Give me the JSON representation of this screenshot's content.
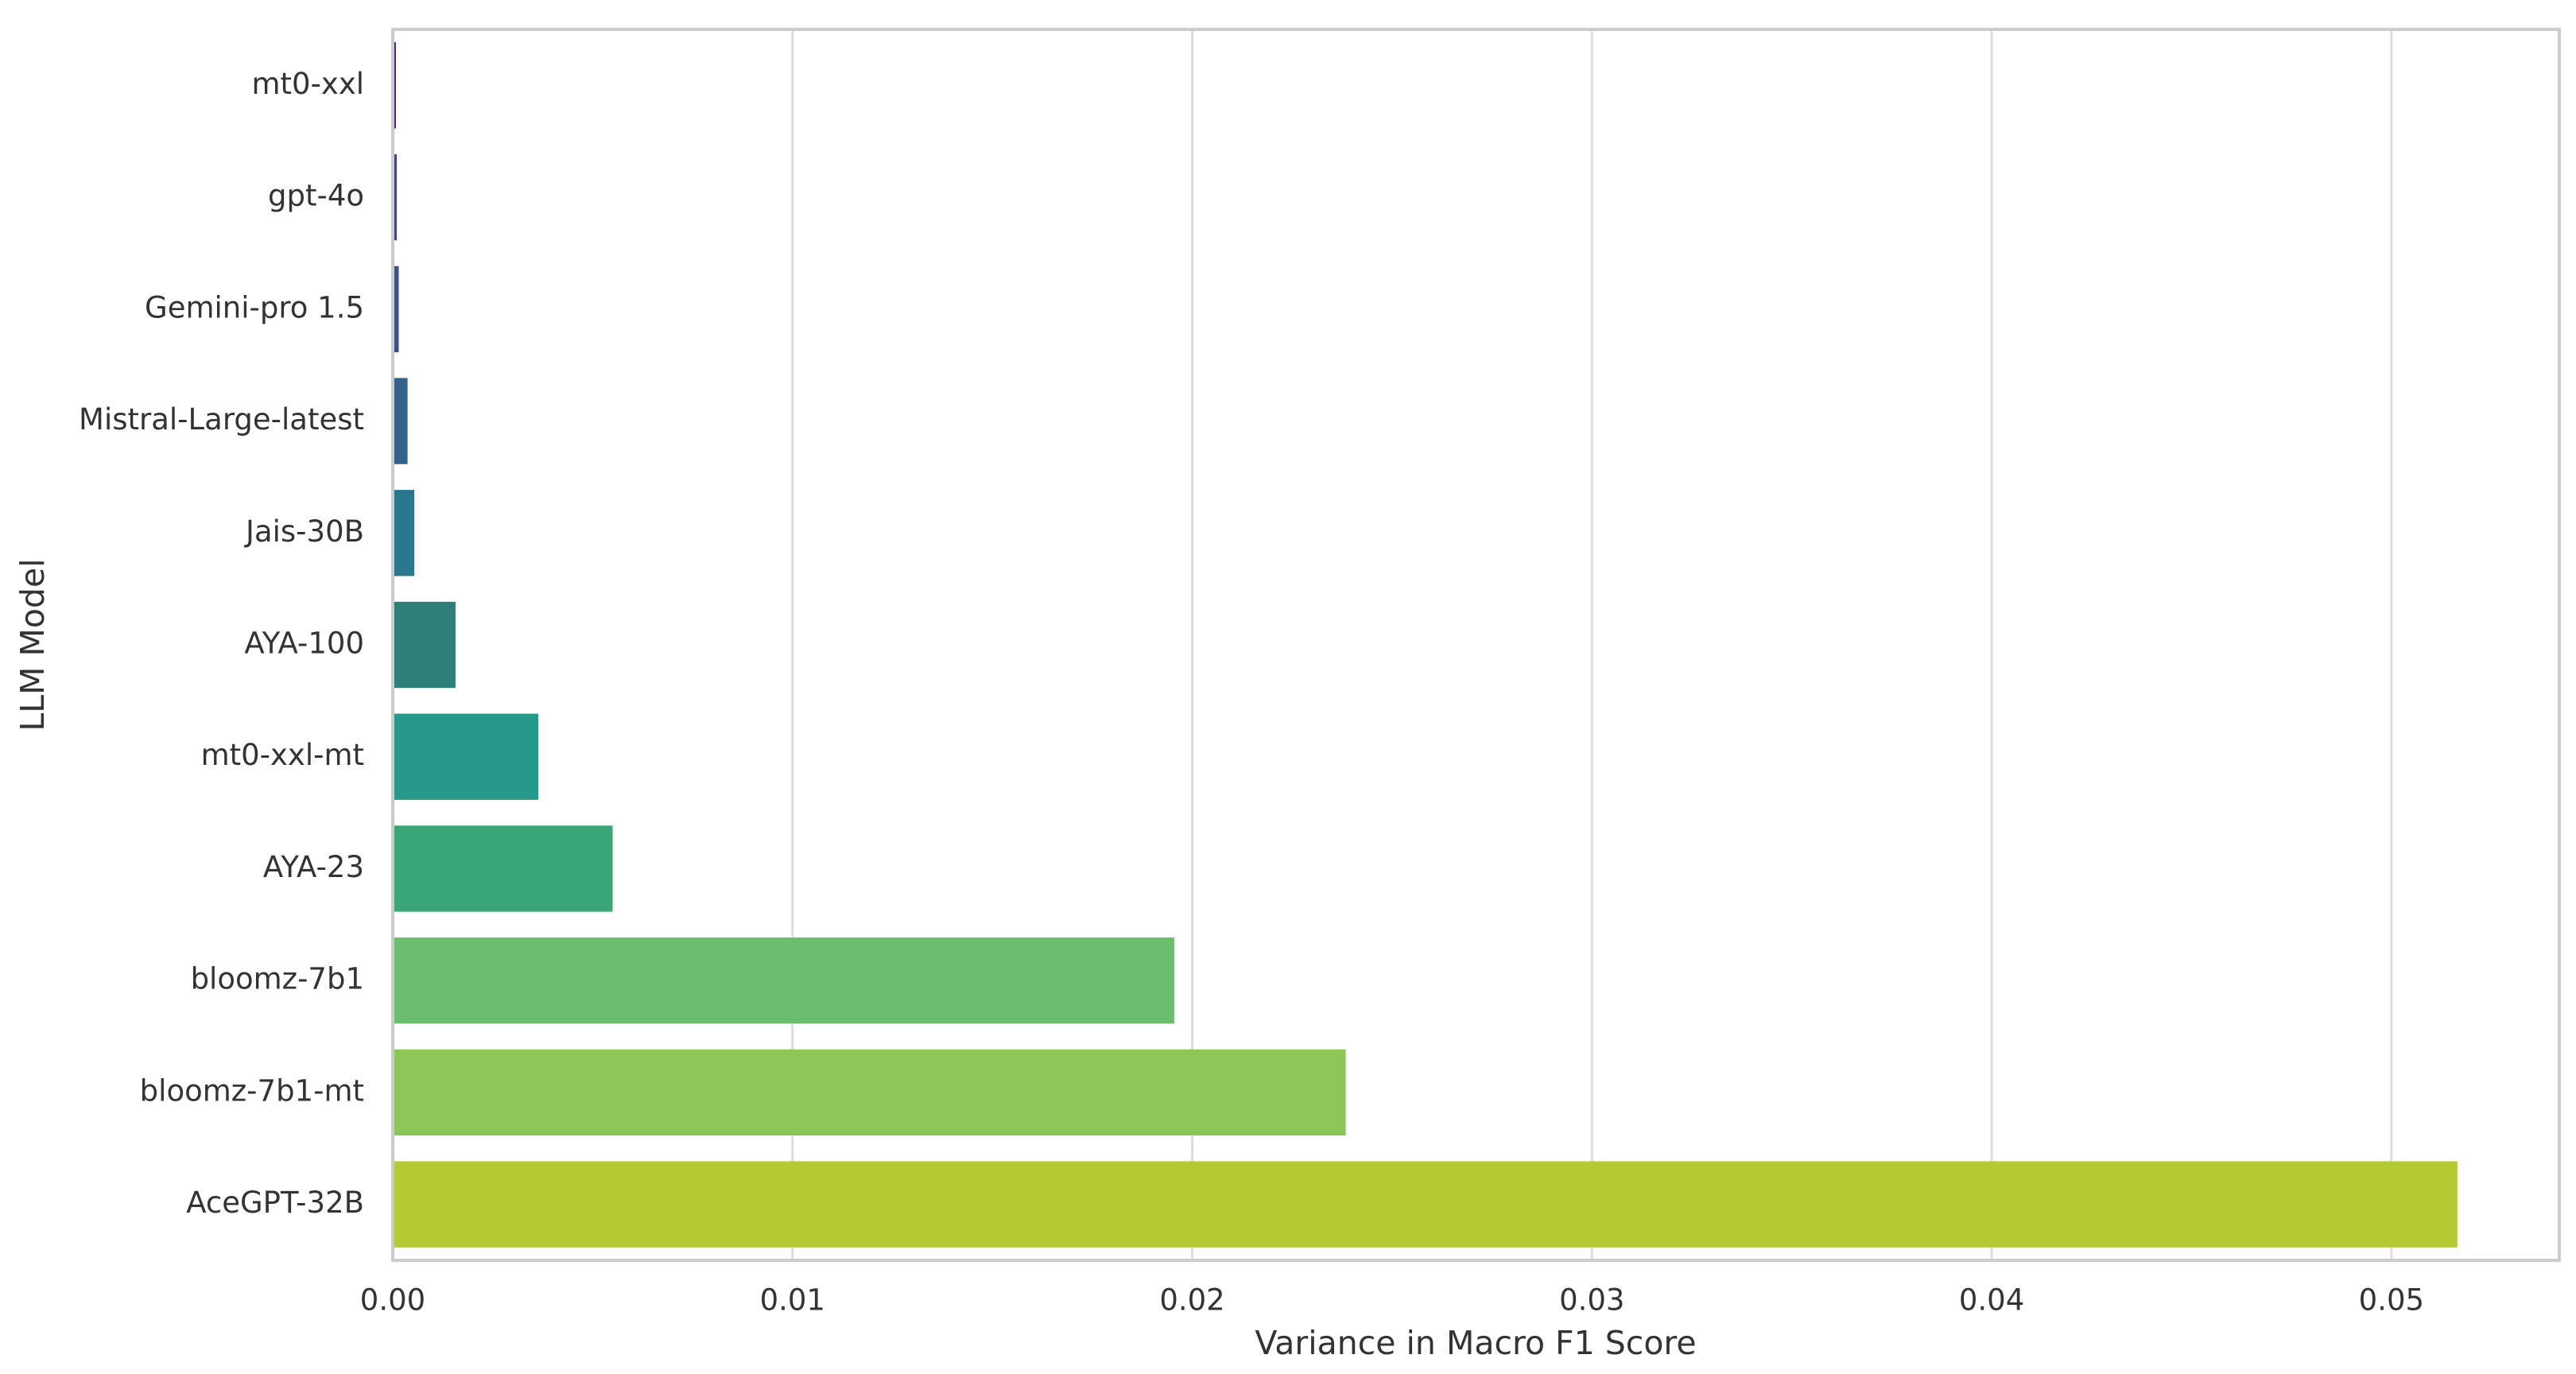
{
  "chart_data": {
    "type": "hbar",
    "xlabel": "Variance in Macro F1 Score",
    "ylabel": "LLM Model",
    "categories": [
      "mt0-xxl",
      "gpt-4o",
      "Gemini-pro 1.5",
      "Mistral-Large-latest",
      "Jais-30B",
      "AYA-100",
      "mt0-xxl-mt",
      "AYA-23",
      "bloomz-7b1",
      "bloomz-7b1-mt",
      "AceGPT-32B"
    ],
    "values": [
      8e-05,
      0.0001,
      0.00015,
      0.00037,
      0.00054,
      0.00157,
      0.00364,
      0.0055,
      0.01955,
      0.02384,
      0.05165
    ],
    "colors": [
      "#472a7a",
      "#414487",
      "#3b528b",
      "#33638d",
      "#2a768e",
      "#2e7f7a",
      "#27998a",
      "#3aa678",
      "#6abe6e",
      "#8cc656",
      "#b5c935"
    ],
    "xlim": [
      0,
      0.0542
    ],
    "xticks": [
      {
        "value": 0,
        "label": "0.00"
      },
      0.01,
      0.02,
      0.03,
      0.04,
      0.05
    ],
    "grid": true
  }
}
